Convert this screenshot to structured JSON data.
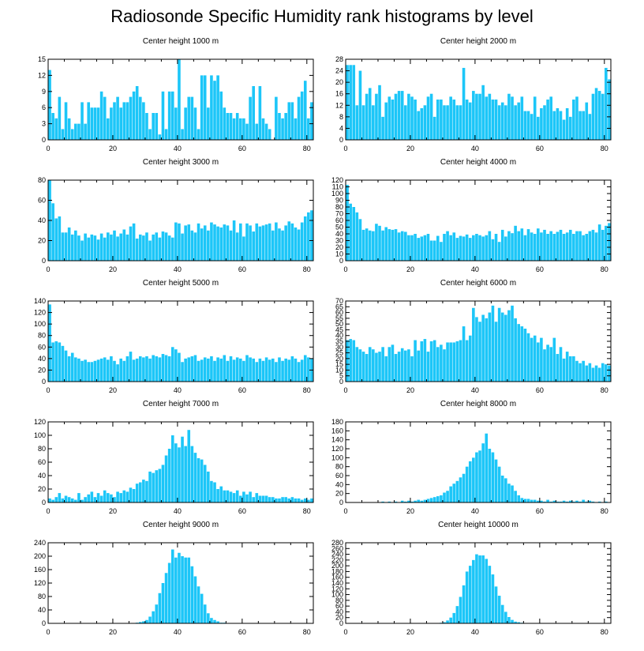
{
  "title": "Radiosonde Specific Humidity rank histograms by level",
  "colors": {
    "bar": "#1cc6f8",
    "bar_edge": "#ffffff",
    "axis": "#000000"
  },
  "chart_data": [
    {
      "type": "bar",
      "title": "Center height 1000 m",
      "ylim": [
        0,
        15
      ],
      "yticks": [
        0,
        3,
        6,
        9,
        12,
        15
      ],
      "yticklabels": [
        "0",
        "3",
        "6",
        "9",
        "12",
        "15"
      ],
      "xlim": [
        0,
        82
      ],
      "xticks": [
        0,
        20,
        40,
        60,
        80
      ],
      "xticklabels": [
        "0",
        "20",
        "40",
        "60",
        "80"
      ],
      "values": [
        13,
        5,
        4,
        8,
        2,
        7,
        4,
        2,
        3,
        3,
        7,
        3,
        7,
        6,
        6,
        6,
        9,
        8,
        4,
        6,
        7,
        8,
        6,
        7,
        7,
        8,
        9,
        10,
        8,
        7,
        5,
        2,
        5,
        5,
        1,
        9,
        2,
        9,
        9,
        6,
        15,
        2,
        6,
        8,
        8,
        6,
        2,
        12,
        12,
        6,
        12,
        11,
        12,
        9,
        6,
        5,
        5,
        4,
        5,
        4,
        4,
        3,
        8,
        10,
        3,
        10,
        4,
        3,
        2,
        0,
        8,
        5,
        4,
        5,
        7,
        7,
        4,
        8,
        9,
        11,
        4,
        7
      ]
    },
    {
      "type": "bar",
      "title": "Center height 2000 m",
      "ylim": [
        0,
        28
      ],
      "yticks": [
        0,
        4,
        8,
        12,
        16,
        20,
        24,
        28
      ],
      "yticklabels": [
        "0",
        "4",
        "8",
        "12",
        "16",
        "20",
        "24",
        "28"
      ],
      "xlim": [
        0,
        82
      ],
      "xticks": [
        0,
        20,
        40,
        60,
        80
      ],
      "xticklabels": [
        "0",
        "20",
        "40",
        "60",
        "80"
      ],
      "values": [
        26,
        26,
        26,
        12,
        24,
        12,
        16,
        18,
        12,
        16,
        19,
        8,
        13,
        15,
        14,
        16,
        17,
        17,
        12,
        16,
        15,
        14,
        10,
        11,
        12,
        15,
        16,
        8,
        14,
        14,
        12,
        12,
        15,
        14,
        12,
        12,
        25,
        14,
        13,
        17,
        16,
        16,
        19,
        15,
        16,
        14,
        14,
        12,
        13,
        12,
        16,
        15,
        12,
        13,
        15,
        10,
        10,
        9,
        15,
        8,
        11,
        12,
        14,
        15,
        10,
        11,
        10,
        7,
        11,
        8,
        14,
        15,
        10,
        10,
        13,
        9,
        16,
        18,
        17,
        16,
        25,
        21
      ]
    },
    {
      "type": "bar",
      "title": "Center height 3000 m",
      "ylim": [
        0,
        80
      ],
      "yticks": [
        0,
        20,
        40,
        60,
        80
      ],
      "yticklabels": [
        "0",
        "20",
        "40",
        "60",
        "80"
      ],
      "xlim": [
        0,
        82
      ],
      "xticks": [
        0,
        20,
        40,
        60,
        80
      ],
      "xticklabels": [
        "0",
        "20",
        "40",
        "60",
        "80"
      ],
      "values": [
        80,
        57,
        42,
        44,
        28,
        28,
        33,
        26,
        30,
        25,
        20,
        27,
        23,
        26,
        25,
        21,
        27,
        23,
        28,
        26,
        30,
        24,
        27,
        31,
        26,
        34,
        37,
        22,
        26,
        25,
        28,
        20,
        26,
        28,
        23,
        29,
        28,
        25,
        23,
        38,
        37,
        27,
        35,
        36,
        30,
        28,
        37,
        32,
        35,
        30,
        38,
        36,
        34,
        33,
        36,
        35,
        30,
        40,
        28,
        37,
        24,
        37,
        35,
        29,
        37,
        34,
        35,
        36,
        37,
        30,
        38,
        32,
        30,
        35,
        39,
        37,
        33,
        31,
        38,
        44,
        48,
        50
      ]
    },
    {
      "type": "bar",
      "title": "Center height 4000 m",
      "ylim": [
        0,
        120
      ],
      "yticks": [
        0,
        10,
        20,
        30,
        40,
        50,
        60,
        70,
        80,
        90,
        100,
        110,
        120
      ],
      "yticklabels": [
        "0",
        "10",
        "20",
        "30",
        "40",
        "50",
        "60",
        "70",
        "80",
        "90",
        "100",
        "110",
        "120"
      ],
      "xlim": [
        0,
        82
      ],
      "xticks": [
        0,
        20,
        40,
        60,
        80
      ],
      "xticklabels": [
        "0",
        "20",
        "40",
        "60",
        "80"
      ],
      "values": [
        113,
        85,
        80,
        72,
        62,
        46,
        48,
        45,
        44,
        55,
        52,
        45,
        50,
        47,
        46,
        47,
        42,
        44,
        43,
        38,
        38,
        40,
        34,
        36,
        38,
        40,
        30,
        30,
        37,
        28,
        40,
        44,
        38,
        42,
        34,
        37,
        36,
        39,
        34,
        38,
        40,
        38,
        36,
        38,
        44,
        32,
        40,
        28,
        46,
        36,
        44,
        41,
        52,
        44,
        48,
        38,
        47,
        42,
        40,
        48,
        42,
        46,
        40,
        44,
        40,
        43,
        46,
        40,
        42,
        46,
        40,
        44,
        44,
        38,
        40,
        44,
        46,
        42,
        54,
        46,
        52,
        56
      ]
    },
    {
      "type": "bar",
      "title": "Center height 5000 m",
      "ylim": [
        0,
        140
      ],
      "yticks": [
        0,
        20,
        40,
        60,
        80,
        100,
        120,
        140
      ],
      "yticklabels": [
        "0",
        "20",
        "40",
        "60",
        "80",
        "100",
        "120",
        "140"
      ],
      "xlim": [
        0,
        82
      ],
      "xticks": [
        0,
        20,
        40,
        60,
        80
      ],
      "xticklabels": [
        "0",
        "20",
        "40",
        "60",
        "80"
      ],
      "values": [
        134,
        68,
        70,
        68,
        62,
        54,
        44,
        50,
        42,
        40,
        36,
        38,
        34,
        34,
        36,
        38,
        40,
        42,
        38,
        44,
        36,
        30,
        40,
        36,
        44,
        52,
        38,
        40,
        44,
        42,
        44,
        40,
        46,
        44,
        42,
        48,
        46,
        44,
        60,
        56,
        50,
        34,
        40,
        42,
        44,
        46,
        36,
        38,
        42,
        40,
        44,
        36,
        42,
        40,
        46,
        36,
        44,
        38,
        42,
        40,
        36,
        46,
        42,
        40,
        34,
        40,
        36,
        42,
        38,
        40,
        34,
        42,
        36,
        40,
        38,
        44,
        40,
        34,
        38,
        46,
        42,
        40
      ]
    },
    {
      "type": "bar",
      "title": "Center height 6000 m",
      "ylim": [
        0,
        70
      ],
      "yticks": [
        0,
        5,
        10,
        15,
        20,
        25,
        30,
        35,
        40,
        45,
        50,
        55,
        60,
        65,
        70
      ],
      "yticklabels": [
        "0",
        "5",
        "10",
        "15",
        "20",
        "25",
        "30",
        "35",
        "40",
        "45",
        "50",
        "55",
        "60",
        "65",
        "70"
      ],
      "xlim": [
        0,
        82
      ],
      "xticks": [
        0,
        20,
        40,
        60,
        80
      ],
      "xticklabels": [
        "0",
        "20",
        "40",
        "60",
        "80"
      ],
      "values": [
        36,
        37,
        36,
        30,
        28,
        26,
        24,
        30,
        28,
        25,
        26,
        30,
        22,
        30,
        32,
        24,
        26,
        29,
        27,
        28,
        22,
        36,
        27,
        35,
        37,
        26,
        35,
        36,
        30,
        32,
        28,
        34,
        34,
        34,
        35,
        36,
        48,
        36,
        40,
        64,
        56,
        52,
        58,
        55,
        60,
        66,
        52,
        64,
        60,
        58,
        62,
        66,
        55,
        50,
        48,
        46,
        42,
        38,
        40,
        34,
        38,
        28,
        32,
        30,
        38,
        24,
        30,
        20,
        26,
        22,
        22,
        18,
        16,
        18,
        14,
        16,
        12,
        14,
        12,
        16,
        15,
        14
      ]
    },
    {
      "type": "bar",
      "title": "Center height 7000 m",
      "ylim": [
        0,
        120
      ],
      "yticks": [
        0,
        20,
        40,
        60,
        80,
        100,
        120
      ],
      "yticklabels": [
        "0",
        "20",
        "40",
        "60",
        "80",
        "100",
        "120"
      ],
      "xlim": [
        0,
        82
      ],
      "xticks": [
        0,
        20,
        40,
        60,
        80
      ],
      "xticklabels": [
        "0",
        "20",
        "40",
        "60",
        "80"
      ],
      "values": [
        6,
        4,
        8,
        14,
        6,
        10,
        8,
        6,
        4,
        14,
        4,
        8,
        12,
        16,
        8,
        14,
        10,
        18,
        14,
        12,
        8,
        16,
        14,
        18,
        16,
        22,
        20,
        28,
        30,
        34,
        32,
        46,
        44,
        48,
        50,
        56,
        70,
        80,
        100,
        88,
        82,
        98,
        84,
        108,
        84,
        74,
        66,
        64,
        56,
        46,
        32,
        30,
        20,
        24,
        18,
        18,
        16,
        14,
        18,
        10,
        16,
        12,
        16,
        8,
        14,
        10,
        10,
        10,
        8,
        8,
        6,
        6,
        8,
        8,
        6,
        8,
        6,
        6,
        4,
        6,
        4,
        6
      ]
    },
    {
      "type": "bar",
      "title": "Center height 8000 m",
      "ylim": [
        0,
        180
      ],
      "yticks": [
        0,
        20,
        40,
        60,
        80,
        100,
        120,
        140,
        160,
        180
      ],
      "yticklabels": [
        "0",
        "20",
        "40",
        "60",
        "80",
        "100",
        "120",
        "140",
        "160",
        "180"
      ],
      "xlim": [
        0,
        82
      ],
      "xticks": [
        0,
        20,
        40,
        60,
        80
      ],
      "xticklabels": [
        "0",
        "20",
        "40",
        "60",
        "80"
      ],
      "values": [
        0,
        0,
        0,
        0,
        0,
        0,
        0,
        0,
        0,
        0,
        0,
        2,
        0,
        2,
        0,
        2,
        0,
        4,
        2,
        4,
        2,
        4,
        6,
        4,
        6,
        8,
        10,
        12,
        14,
        16,
        22,
        26,
        36,
        42,
        48,
        56,
        64,
        80,
        92,
        100,
        112,
        116,
        132,
        154,
        120,
        112,
        96,
        80,
        60,
        54,
        42,
        38,
        26,
        16,
        10,
        8,
        8,
        6,
        6,
        4,
        4,
        2,
        6,
        2,
        4,
        2,
        2,
        4,
        2,
        4,
        2,
        4,
        2,
        6,
        2,
        4,
        2,
        0,
        2,
        0,
        2,
        0
      ]
    },
    {
      "type": "bar",
      "title": "Center height 9000 m",
      "ylim": [
        0,
        240
      ],
      "yticks": [
        0,
        40,
        80,
        120,
        160,
        200,
        240
      ],
      "yticklabels": [
        "0",
        "40",
        "80",
        "120",
        "160",
        "200",
        "240"
      ],
      "xlim": [
        0,
        82
      ],
      "xticks": [
        0,
        20,
        40,
        60,
        80
      ],
      "xticklabels": [
        "0",
        "20",
        "40",
        "60",
        "80"
      ],
      "values": [
        0,
        0,
        0,
        0,
        0,
        0,
        0,
        0,
        0,
        0,
        0,
        0,
        0,
        0,
        0,
        0,
        0,
        0,
        0,
        0,
        0,
        0,
        0,
        0,
        0,
        0,
        0,
        2,
        4,
        6,
        10,
        20,
        36,
        56,
        90,
        120,
        150,
        180,
        220,
        196,
        210,
        200,
        196,
        196,
        170,
        140,
        110,
        88,
        56,
        30,
        16,
        10,
        6,
        2,
        2,
        0,
        0,
        0,
        0,
        0,
        0,
        0,
        0,
        0,
        0,
        0,
        0,
        0,
        0,
        0,
        0,
        0,
        0,
        0,
        0,
        0,
        0,
        0,
        0,
        0,
        0,
        0
      ]
    },
    {
      "type": "bar",
      "title": "Center height 10000 m",
      "ylim": [
        0,
        280
      ],
      "yticks": [
        0,
        20,
        40,
        60,
        80,
        100,
        120,
        140,
        160,
        180,
        200,
        220,
        240,
        260,
        280
      ],
      "yticklabels": [
        "0",
        "20",
        "40",
        "60",
        "80",
        "100",
        "120",
        "140",
        "160",
        "180",
        "200",
        "220",
        "240",
        "260",
        "280"
      ],
      "xlim": [
        0,
        82
      ],
      "xticks": [
        0,
        20,
        40,
        60,
        80
      ],
      "xticklabels": [
        "0",
        "20",
        "40",
        "60",
        "80"
      ],
      "values": [
        0,
        0,
        0,
        0,
        0,
        0,
        0,
        0,
        0,
        0,
        0,
        0,
        0,
        0,
        0,
        0,
        0,
        0,
        0,
        0,
        0,
        0,
        0,
        0,
        0,
        0,
        0,
        0,
        0,
        2,
        4,
        10,
        20,
        36,
        60,
        92,
        132,
        180,
        200,
        220,
        240,
        236,
        236,
        224,
        200,
        170,
        128,
        96,
        64,
        40,
        22,
        12,
        6,
        4,
        2,
        0,
        0,
        0,
        0,
        0,
        0,
        0,
        0,
        0,
        0,
        0,
        0,
        0,
        0,
        0,
        0,
        0,
        0,
        0,
        0,
        0,
        0,
        0,
        0,
        0,
        0,
        0
      ]
    }
  ]
}
